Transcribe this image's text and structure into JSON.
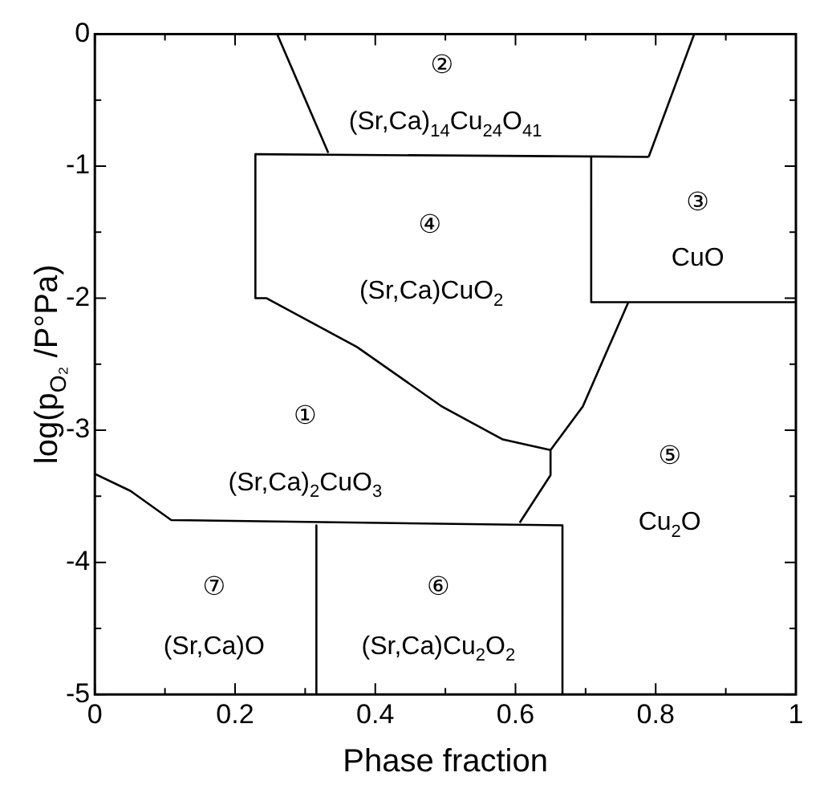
{
  "chart_data": {
    "type": "line",
    "xlabel": "Phase fraction",
    "ylabel": "log(p$_{O₂}$ /P°Pa)",
    "xlim": [
      0,
      1
    ],
    "ylim": [
      -5,
      0
    ],
    "xticks": [
      0,
      {
        "value": 0.1,
        "label": null
      },
      0.2,
      {
        "value": 0.3,
        "label": null
      },
      0.4,
      {
        "value": 0.5,
        "label": null
      },
      0.6,
      {
        "value": 0.7,
        "label": null
      },
      0.8,
      {
        "value": 0.9,
        "label": null
      },
      1
    ],
    "yticks": [
      -5,
      {
        "value": -4.5,
        "label": null
      },
      -4,
      {
        "value": -3.5,
        "label": null
      },
      -3,
      {
        "value": -2.5,
        "label": null
      },
      -2,
      {
        "value": -1.5,
        "label": null
      },
      -1,
      {
        "value": -0.5,
        "label": null
      },
      0
    ],
    "grid": false,
    "legend": false,
    "marker": "none",
    "line_style": "solid",
    "series": [
      {
        "color": "#000000",
        "x": [
          0.26,
          0.333
        ],
        "values": [
          0,
          -0.9
        ]
      },
      {
        "color": "#000000",
        "x": [
          0.229,
          0.79
        ],
        "values": [
          -0.91,
          -0.93
        ]
      },
      {
        "color": "#000000",
        "x": [
          0.79,
          0.855
        ],
        "values": [
          -0.93,
          0
        ]
      },
      {
        "color": "#000000",
        "x": [
          0.229,
          0.229,
          0.245,
          0.374,
          0.495,
          0.582,
          0.65
        ],
        "values": [
          -0.91,
          -2.0,
          -2.0,
          -2.37,
          -2.82,
          -3.07,
          -3.15
        ]
      },
      {
        "color": "#000000",
        "x": [
          0.708,
          0.708,
          1
        ],
        "values": [
          -0.93,
          -2.03,
          -2.03
        ]
      },
      {
        "color": "#000000",
        "x": [
          0.761,
          0.696,
          0.65,
          0.65,
          0.606
        ],
        "values": [
          -2.03,
          -2.82,
          -3.15,
          -3.34,
          -3.7
        ]
      },
      {
        "color": "#000000",
        "x": [
          0,
          0.051,
          0.109,
          0.667,
          0.667
        ],
        "values": [
          -3.33,
          -3.46,
          -3.68,
          -3.72,
          -5
        ]
      },
      {
        "color": "#000000",
        "x": [
          0.316,
          0.316
        ],
        "values": [
          -3.72,
          -5
        ]
      }
    ],
    "annotations": [
      "②",
      "(Sr,Ca)$_{14}$Cu$_{24}$O$_{41}$",
      "④",
      "(Sr,Ca)CuO$_{2}$",
      "③",
      "CuO",
      "①",
      "(Sr,Ca)$_{2}$CuO$_{3}$",
      "⑤",
      "Cu$_{2}$O",
      "⑦",
      "(Sr,Ca)O",
      "⑥",
      "(Sr,Ca)Cu$_{2}$O$_{2}$"
    ]
  }
}
